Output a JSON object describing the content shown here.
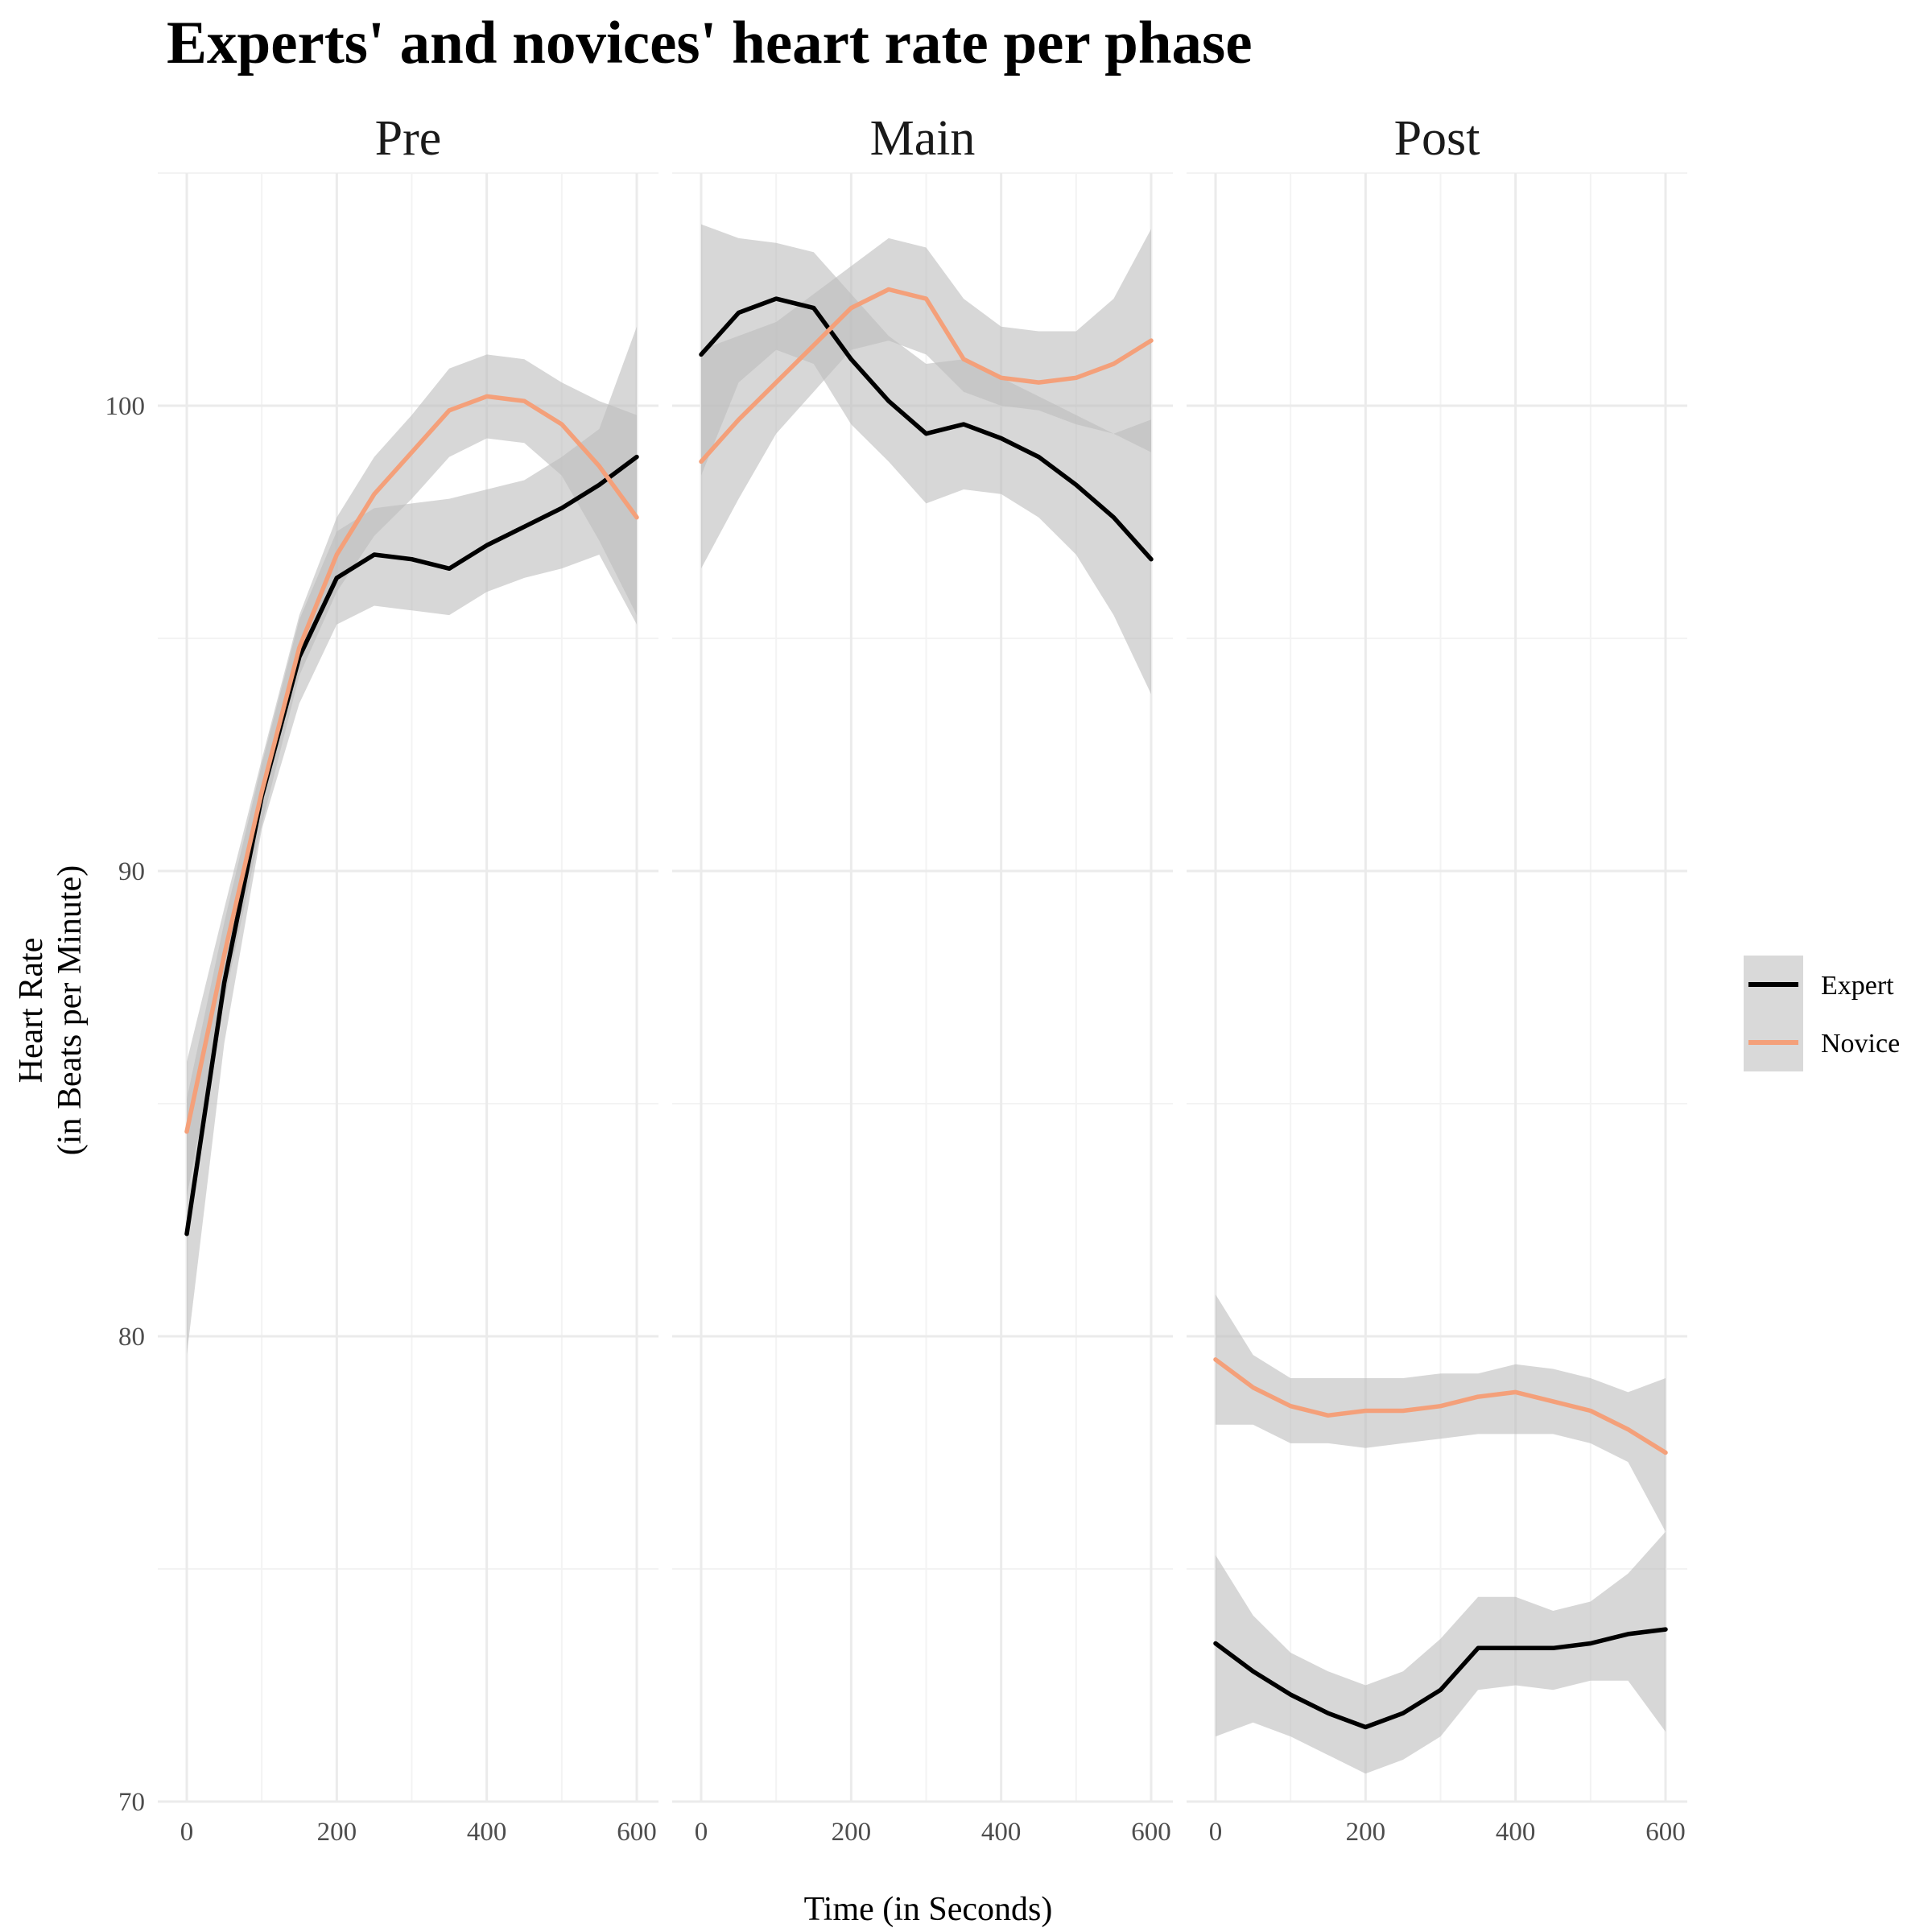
{
  "chart_data": {
    "type": "line",
    "title": "Experts' and novices' heart rate per phase",
    "xlabel": "Time (in Seconds)",
    "ylabel_lines": [
      "Heart Rate",
      "(in Beats per Minute)"
    ],
    "xlim": [
      0,
      600
    ],
    "ylim": [
      70,
      105
    ],
    "x_ticks": [
      0,
      200,
      400,
      600
    ],
    "y_ticks": [
      70,
      80,
      90,
      100
    ],
    "legend_position": "right",
    "legend": [
      {
        "name": "Expert",
        "color": "#000000"
      },
      {
        "name": "Novice",
        "color": "#F4A07A"
      }
    ],
    "colors": {
      "expert": "#000000",
      "novice": "#F4A07A",
      "band": "#bdbdbd",
      "grid": "#ebebeb"
    },
    "panels": [
      {
        "label": "Pre",
        "series": [
          {
            "name": "Expert",
            "x": [
              0,
              50,
              100,
              150,
              200,
              250,
              300,
              350,
              400,
              450,
              500,
              550,
              600
            ],
            "y": [
              82.2,
              87.6,
              91.6,
              94.6,
              96.3,
              96.8,
              96.7,
              96.5,
              97.0,
              97.4,
              97.8,
              98.3,
              98.9
            ],
            "lower": [
              79.6,
              86.3,
              90.9,
              93.6,
              95.3,
              95.7,
              95.6,
              95.5,
              96.0,
              96.3,
              96.5,
              96.8,
              95.3
            ],
            "upper": [
              85.1,
              88.9,
              92.3,
              95.4,
              97.3,
              97.8,
              97.9,
              98.0,
              98.2,
              98.4,
              98.9,
              99.5,
              101.7
            ]
          },
          {
            "name": "Novice",
            "x": [
              0,
              50,
              100,
              150,
              200,
              250,
              300,
              350,
              400,
              450,
              500,
              550,
              600
            ],
            "y": [
              84.4,
              88.2,
              91.7,
              94.8,
              96.8,
              98.1,
              99.0,
              99.9,
              100.2,
              100.1,
              99.6,
              98.7,
              97.6
            ],
            "lower": [
              83.0,
              87.2,
              91.0,
              94.2,
              96.0,
              97.2,
              98.0,
              98.9,
              99.3,
              99.2,
              98.5,
              97.1,
              95.5
            ],
            "upper": [
              85.9,
              89.2,
              92.4,
              95.5,
              97.6,
              98.9,
              99.8,
              100.8,
              101.1,
              101.0,
              100.5,
              100.1,
              99.8
            ]
          }
        ]
      },
      {
        "label": "Main",
        "series": [
          {
            "name": "Expert",
            "x": [
              0,
              50,
              100,
              150,
              200,
              250,
              300,
              350,
              400,
              450,
              500,
              550,
              600
            ],
            "y": [
              101.1,
              102.0,
              102.3,
              102.1,
              101.0,
              100.1,
              99.4,
              99.6,
              99.3,
              98.9,
              98.3,
              97.6,
              96.7
            ],
            "lower": [
              98.5,
              100.5,
              101.2,
              100.9,
              99.6,
              98.8,
              97.9,
              98.2,
              98.1,
              97.6,
              96.8,
              95.5,
              93.8
            ],
            "upper": [
              103.9,
              103.6,
              103.5,
              103.3,
              102.4,
              101.5,
              100.9,
              101.0,
              100.6,
              100.2,
              99.8,
              99.4,
              99.7
            ]
          },
          {
            "name": "Novice",
            "x": [
              0,
              50,
              100,
              150,
              200,
              250,
              300,
              350,
              400,
              450,
              500,
              550,
              600
            ],
            "y": [
              98.8,
              99.7,
              100.5,
              101.3,
              102.1,
              102.5,
              102.3,
              101.0,
              100.6,
              100.5,
              100.6,
              100.9,
              101.4
            ],
            "lower": [
              96.5,
              98.0,
              99.4,
              100.3,
              101.2,
              101.4,
              101.1,
              100.3,
              100.0,
              99.9,
              99.6,
              99.4,
              99.0
            ],
            "upper": [
              101.2,
              101.5,
              101.8,
              102.4,
              103.0,
              103.6,
              103.4,
              102.3,
              101.7,
              101.6,
              101.6,
              102.3,
              103.8
            ]
          }
        ]
      },
      {
        "label": "Post",
        "series": [
          {
            "name": "Expert",
            "x": [
              0,
              50,
              100,
              150,
              200,
              250,
              300,
              350,
              400,
              450,
              500,
              550,
              600
            ],
            "y": [
              73.4,
              72.8,
              72.3,
              71.9,
              71.6,
              71.9,
              72.4,
              73.3,
              73.3,
              73.3,
              73.4,
              73.6,
              73.7
            ],
            "lower": [
              71.4,
              71.7,
              71.4,
              71.0,
              70.6,
              70.9,
              71.4,
              72.4,
              72.5,
              72.4,
              72.6,
              72.6,
              71.5
            ],
            "upper": [
              75.3,
              74.0,
              73.2,
              72.8,
              72.5,
              72.8,
              73.5,
              74.4,
              74.4,
              74.1,
              74.3,
              74.9,
              75.8
            ]
          },
          {
            "name": "Novice",
            "x": [
              0,
              50,
              100,
              150,
              200,
              250,
              300,
              350,
              400,
              450,
              500,
              550,
              600
            ],
            "y": [
              79.5,
              78.9,
              78.5,
              78.3,
              78.4,
              78.4,
              78.5,
              78.7,
              78.8,
              78.6,
              78.4,
              78.0,
              77.5
            ],
            "lower": [
              78.1,
              78.1,
              77.7,
              77.7,
              77.6,
              77.7,
              77.8,
              77.9,
              77.9,
              77.9,
              77.7,
              77.3,
              75.8
            ],
            "upper": [
              80.9,
              79.6,
              79.1,
              79.1,
              79.1,
              79.1,
              79.2,
              79.2,
              79.4,
              79.3,
              79.1,
              78.8,
              79.1
            ]
          }
        ]
      }
    ]
  }
}
